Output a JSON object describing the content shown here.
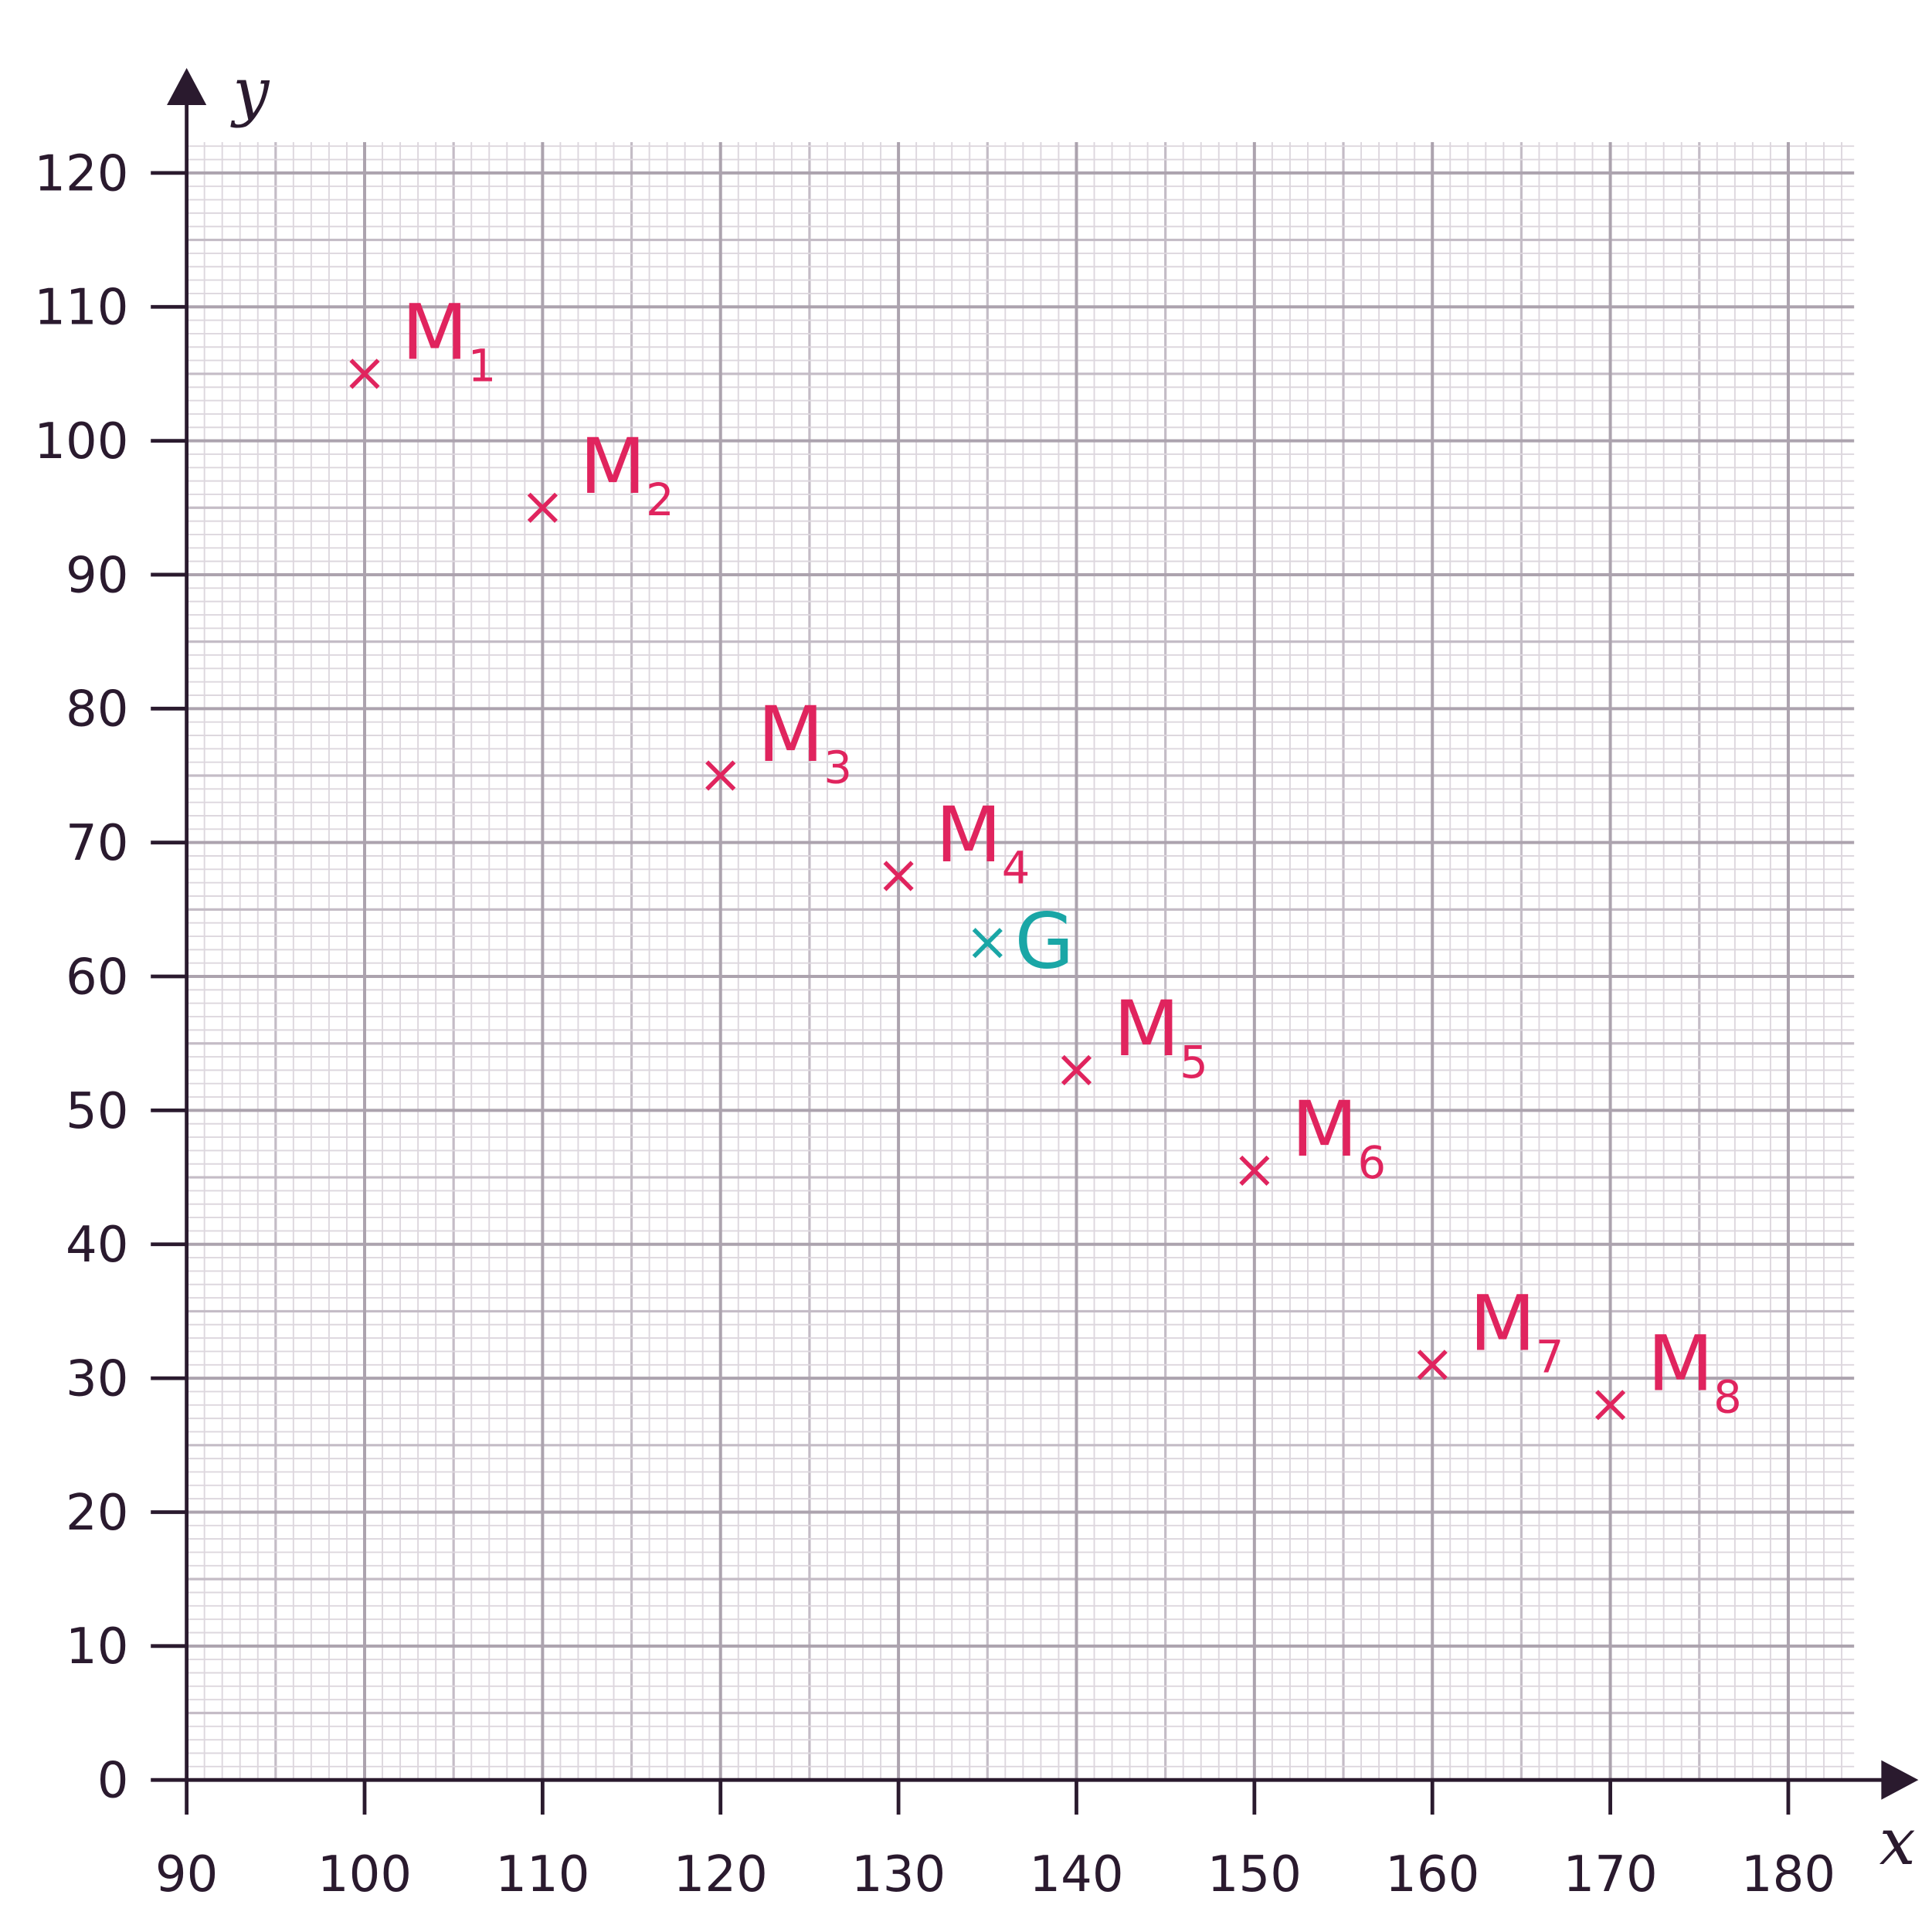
{
  "chart_data": {
    "type": "scatter",
    "x_label": "x",
    "y_label": "y",
    "xlim": [
      90,
      183.7
    ],
    "ylim": [
      0,
      122.3
    ],
    "xticks": [
      90,
      100,
      110,
      120,
      130,
      140,
      150,
      160,
      170,
      180
    ],
    "yticks": [
      0,
      10,
      20,
      30,
      40,
      50,
      60,
      70,
      80,
      90,
      100,
      110,
      120
    ],
    "grid": true,
    "minor_grid_step": 1,
    "medium_grid_step": 5,
    "series": [
      {
        "name": "M",
        "color": "#e0245e",
        "x": [
          100,
          110,
          120,
          130,
          140,
          150,
          160,
          170
        ],
        "values": [
          105,
          95,
          75,
          67.5,
          53,
          45.5,
          31,
          28
        ],
        "subscripts": [
          "1",
          "2",
          "3",
          "4",
          "5",
          "6",
          "7",
          "8"
        ]
      },
      {
        "name": "G",
        "color": "#1aa6a6",
        "x": [
          135
        ],
        "values": [
          62.5
        ]
      }
    ]
  }
}
